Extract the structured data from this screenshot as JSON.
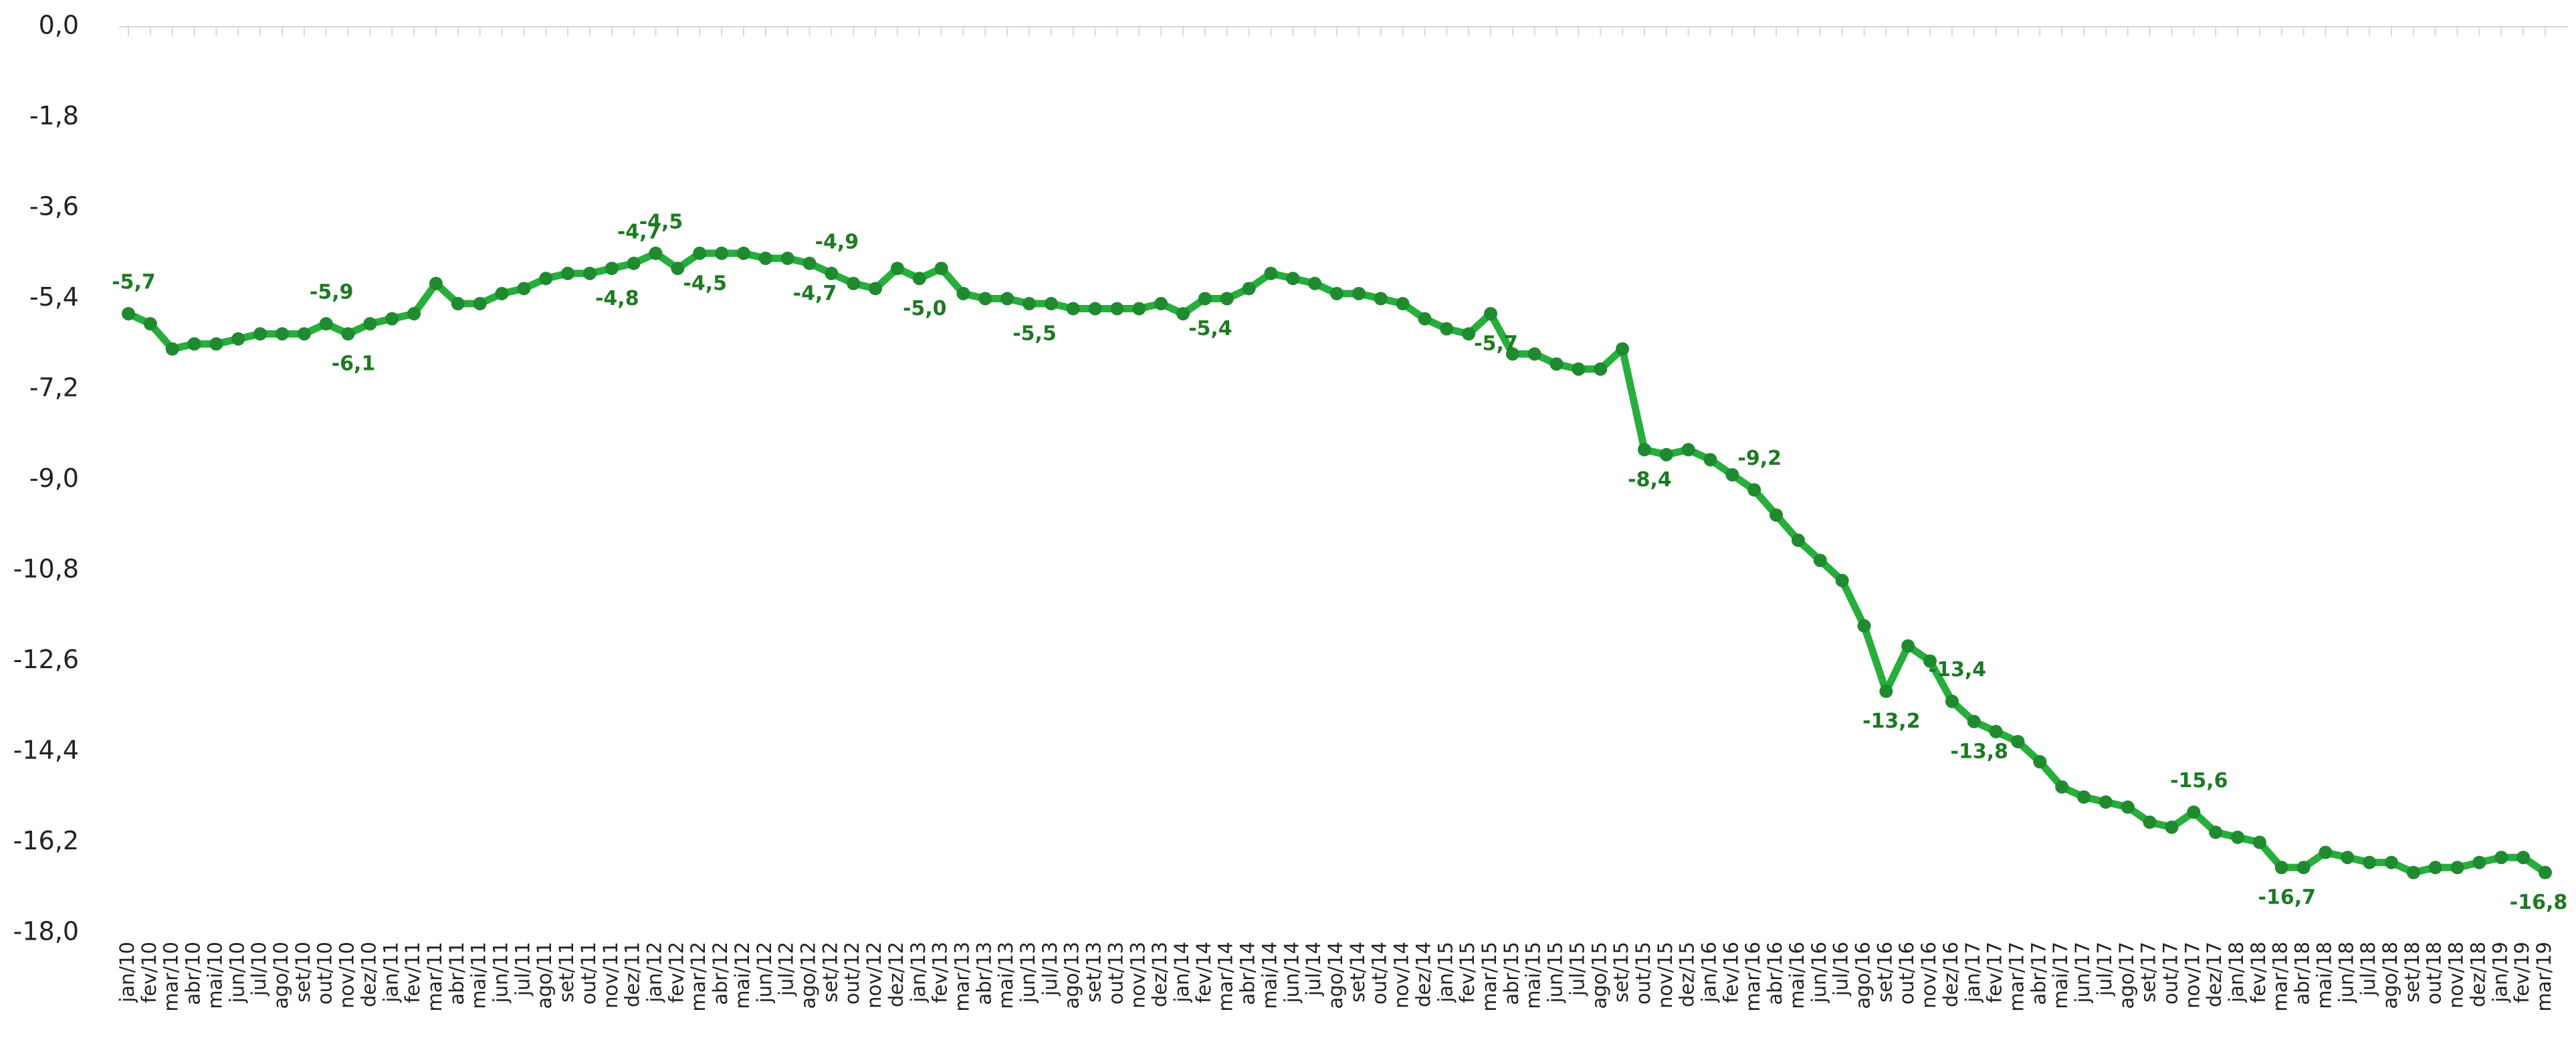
{
  "chart_data": {
    "type": "line",
    "categories": [
      "jan/10",
      "fev/10",
      "mar/10",
      "abr/10",
      "mai/10",
      "jun/10",
      "jul/10",
      "ago/10",
      "set/10",
      "out/10",
      "nov/10",
      "dez/10",
      "jan/11",
      "fev/11",
      "mar/11",
      "abr/11",
      "mai/11",
      "jun/11",
      "jul/11",
      "ago/11",
      "set/11",
      "out/11",
      "nov/11",
      "dez/11",
      "jan/12",
      "fev/12",
      "mar/12",
      "abr/12",
      "mai/12",
      "jun/12",
      "jul/12",
      "ago/12",
      "set/12",
      "out/12",
      "nov/12",
      "dez/12",
      "jan/13",
      "fev/13",
      "mar/13",
      "abr/13",
      "mai/13",
      "jun/13",
      "jul/13",
      "ago/13",
      "set/13",
      "out/13",
      "nov/13",
      "dez/13",
      "jan/14",
      "fev/14",
      "mar/14",
      "abr/14",
      "mai/14",
      "jun/14",
      "jul/14",
      "ago/14",
      "set/14",
      "out/14",
      "nov/14",
      "dez/14",
      "jan/15",
      "fev/15",
      "mar/15",
      "abr/15",
      "mai/15",
      "jun/15",
      "jul/15",
      "ago/15",
      "set/15",
      "out/15",
      "nov/15",
      "dez/15",
      "jan/16",
      "fev/16",
      "mar/16",
      "abr/16",
      "mai/16",
      "jun/16",
      "jul/16",
      "ago/16",
      "set/16",
      "out/16",
      "nov/16",
      "dez/16",
      "jan/17",
      "fev/17",
      "mar/17",
      "abr/17",
      "mai/17",
      "jun/17",
      "jul/17",
      "ago/17",
      "set/17",
      "out/17",
      "nov/17",
      "dez/17",
      "jan/18",
      "fev/18",
      "mar/18",
      "abr/18",
      "mai/18",
      "jun/18",
      "jul/18",
      "ago/18",
      "set/18",
      "out/18",
      "nov/18",
      "dez/18",
      "jan/19",
      "fev/19",
      "mar/19"
    ],
    "values": [
      -5.7,
      -5.9,
      -6.4,
      -6.3,
      -6.3,
      -6.2,
      -6.1,
      -6.1,
      -6.1,
      -5.9,
      -6.1,
      -5.9,
      -5.8,
      -5.7,
      -5.1,
      -5.5,
      -5.5,
      -5.3,
      -5.2,
      -5.0,
      -4.9,
      -4.9,
      -4.8,
      -4.7,
      -4.5,
      -4.8,
      -4.5,
      -4.5,
      -4.5,
      -4.6,
      -4.6,
      -4.7,
      -4.9,
      -5.1,
      -5.2,
      -4.8,
      -5.0,
      -4.8,
      -5.3,
      -5.4,
      -5.4,
      -5.5,
      -5.5,
      -5.6,
      -5.6,
      -5.6,
      -5.6,
      -5.5,
      -5.7,
      -5.4,
      -5.4,
      -5.2,
      -4.9,
      -5.0,
      -5.1,
      -5.3,
      -5.3,
      -5.4,
      -5.5,
      -5.8,
      -6.0,
      -6.1,
      -5.7,
      -6.5,
      -6.5,
      -6.7,
      -6.8,
      -6.8,
      -6.4,
      -8.4,
      -8.5,
      -8.4,
      -8.6,
      -8.9,
      -9.2,
      -9.7,
      -10.2,
      -10.6,
      -11.0,
      -11.9,
      -13.2,
      -12.3,
      -12.6,
      -13.4,
      -13.8,
      -14.0,
      -14.2,
      -14.6,
      -15.1,
      -15.3,
      -15.4,
      -15.5,
      -15.8,
      -15.9,
      -15.6,
      -16.0,
      -16.1,
      -16.2,
      -16.7,
      -16.7,
      -16.4,
      -16.5,
      -16.6,
      -16.6,
      -16.8,
      -16.7,
      -16.7,
      -16.6,
      -16.5,
      -16.5,
      -16.8
    ],
    "value_labels": [
      "-5,7",
      null,
      null,
      null,
      null,
      null,
      null,
      null,
      null,
      "-5,9",
      "-6,1",
      null,
      null,
      null,
      null,
      null,
      null,
      null,
      null,
      null,
      null,
      null,
      "-4,8",
      "-4,7",
      "-4,5",
      null,
      "-4,5",
      null,
      null,
      null,
      null,
      "-4,7",
      "-4,9",
      null,
      null,
      null,
      "-5,0",
      null,
      null,
      null,
      null,
      "-5,5",
      null,
      null,
      null,
      null,
      null,
      null,
      null,
      "-5,4",
      null,
      null,
      null,
      null,
      null,
      null,
      null,
      null,
      null,
      null,
      null,
      null,
      "-5,7",
      null,
      null,
      null,
      null,
      null,
      null,
      "-8,4",
      null,
      null,
      null,
      null,
      "-9,2",
      null,
      null,
      null,
      null,
      null,
      "-13,2",
      null,
      null,
      "-13,4",
      "-13,8",
      null,
      null,
      null,
      null,
      null,
      null,
      null,
      null,
      null,
      "-15,6",
      null,
      null,
      null,
      "-16,7",
      null,
      null,
      null,
      null,
      null,
      null,
      null,
      null,
      null,
      null,
      null,
      "-16,8"
    ],
    "color": "#27ae3c",
    "marker_color": "#1f8a2f",
    "ylim": [
      -18,
      0
    ],
    "yticks": [
      {
        "value": 0,
        "label": "0,0"
      },
      {
        "value": -1.8,
        "label": "-1,8"
      },
      {
        "value": -3.6,
        "label": "-3,6"
      },
      {
        "value": -5.4,
        "label": "-5,4"
      },
      {
        "value": -7.2,
        "label": "-7,2"
      },
      {
        "value": -9,
        "label": "-9,0"
      },
      {
        "value": -10.8,
        "label": "-10,8"
      },
      {
        "value": -12.6,
        "label": "-12,6"
      },
      {
        "value": -14.4,
        "label": "-14,4"
      },
      {
        "value": -16.2,
        "label": "-16,2"
      },
      {
        "value": -18,
        "label": "-18,0"
      }
    ]
  }
}
